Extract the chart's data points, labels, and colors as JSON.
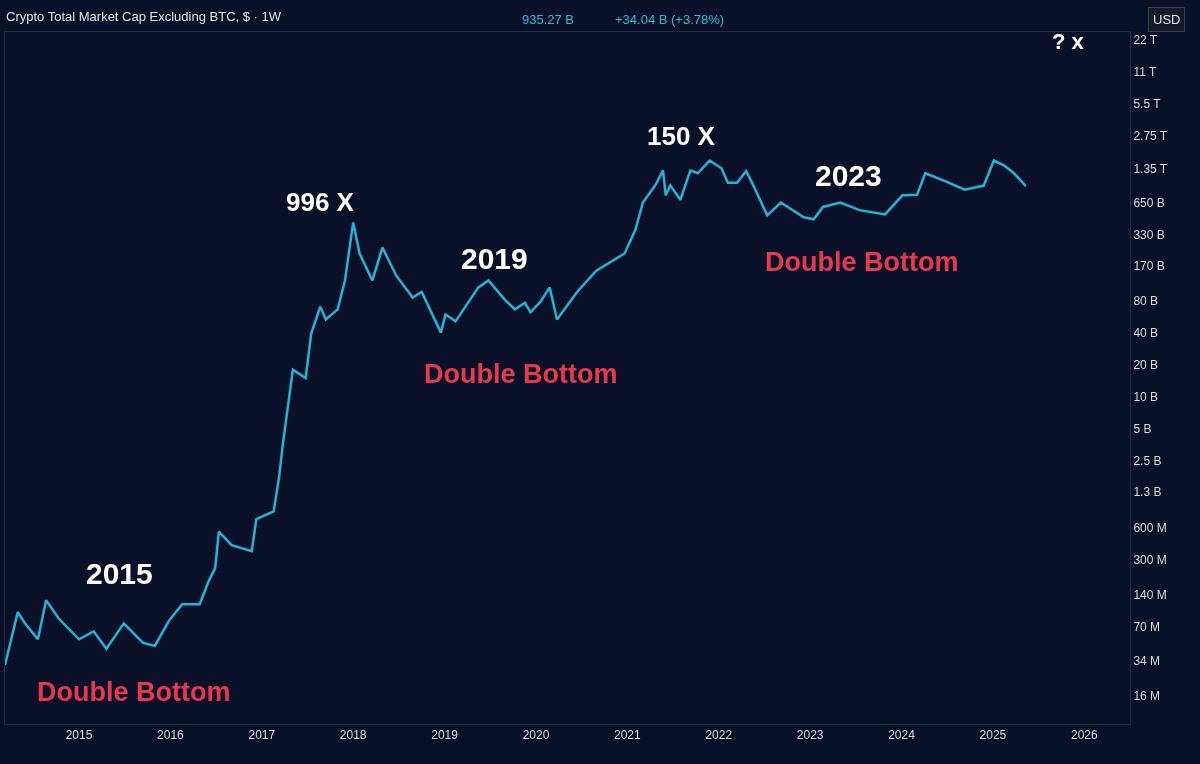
{
  "chart_data": {
    "type": "line",
    "title": "Crypto Total Market Cap Excluding BTC, $ · 1W",
    "annotations": [
      "935.27 B",
      "+34.04 B (+3.78%)",
      "USD",
      "2015",
      "Double Bottom",
      "996 X",
      "2019",
      "Double Bottom",
      "150 X",
      "2023",
      "Double Bottom",
      "? x"
    ],
    "x": [
      2014.19,
      2014.33,
      2014.41,
      2014.55,
      2014.64,
      2014.78,
      2015.0,
      2015.16,
      2015.3,
      2015.49,
      2015.7,
      2015.83,
      2015.99,
      2016.13,
      2016.32,
      2016.42,
      2016.49,
      2016.53,
      2016.67,
      2016.89,
      2016.94,
      2017.13,
      2017.19,
      2017.23,
      2017.34,
      2017.48,
      2017.54,
      2017.64,
      2017.7,
      2017.83,
      2017.91,
      2018.0,
      2018.07,
      2018.21,
      2018.32,
      2018.47,
      2018.65,
      2018.75,
      2018.96,
      2019.01,
      2019.12,
      2019.37,
      2019.48,
      2019.66,
      2019.77,
      2019.88,
      2019.94,
      2020.05,
      2020.15,
      2020.23,
      2020.45,
      2020.66,
      2020.97,
      2021.09,
      2021.17,
      2021.31,
      2021.39,
      2021.42,
      2021.47,
      2021.58,
      2021.69,
      2021.77,
      2021.9,
      2022.03,
      2022.1,
      2022.2,
      2022.3,
      2022.39,
      2022.53,
      2022.68,
      2022.93,
      2023.04,
      2023.14,
      2023.33,
      2023.54,
      2023.82,
      2024.01,
      2024.17,
      2024.26,
      2024.47,
      2024.69,
      2024.9,
      2025.01,
      2025.12,
      2025.23,
      2025.36
    ],
    "series": [
      {
        "color": "#22b5d6",
        "values": [
          31000000.0,
          97000000.0,
          76000000.0,
          54000000.0,
          125000000.0,
          84000000.0,
          54000000.0,
          64000000.0,
          44000000.0,
          76000000.0,
          50000000.0,
          47000000.0,
          82000000.0,
          115000000.0,
          115000000.0,
          190000000.0,
          250000000.0,
          550000000.0,
          410000000.0,
          360000000.0,
          720000000.0,
          850000000.0,
          1800000000.0,
          3600000000.0,
          18000000000.0,
          15000000000.0,
          39000000000.0,
          70000000000.0,
          53000000000.0,
          66000000000.0,
          123000000000.0,
          430000000000.0,
          220000000000.0,
          123000000000.0,
          250000000000.0,
          137000000000.0,
          85000000000.0,
          96000000000.0,
          40000000000.0,
          59000000000.0,
          51000000000.0,
          106000000000.0,
          123000000000.0,
          81000000000.0,
          66000000000.0,
          76000000000.0,
          62000000000.0,
          78000000000.0,
          106000000000.0,
          53000000000.0,
          96000000000.0,
          152000000000.0,
          220000000000.0,
          370000000000.0,
          660000000000.0,
          970000000000.0,
          1320000000000.0,
          770000000000.0,
          950000000000.0,
          700000000000.0,
          1320000000000.0,
          1240000000000.0,
          1630000000000.0,
          1380000000000.0,
          1010000000000.0,
          1010000000000.0,
          1300000000000.0,
          910000000000.0,
          500000000000.0,
          660000000000.0,
          480000000000.0,
          460000000000.0,
          600000000000.0,
          660000000000.0,
          560000000000.0,
          510000000000.0,
          770000000000.0,
          780000000000.0,
          1240000000000.0,
          1050000000000.0,
          870000000000.0,
          950000000000.0,
          1630000000000.0,
          1470000000000.0,
          1240000000000.0,
          940000000000.0
        ]
      }
    ],
    "xlim": [
      2014.19,
      2026.5
    ],
    "xticks": [
      2015,
      2016,
      2017,
      2018,
      2019,
      2020,
      2021,
      2022,
      2023,
      2024,
      2025,
      2026
    ],
    "log": "y",
    "ylim": [
      8700000.0,
      26000000000000.0
    ],
    "yticks": [
      {
        "value": 16000000.0,
        "label": "16 M"
      },
      {
        "value": 34000000.0,
        "label": "34 M"
      },
      {
        "value": 70000000.0,
        "label": "70 M"
      },
      {
        "value": 140000000.0,
        "label": "140 M"
      },
      {
        "value": 300000000.0,
        "label": "300 M"
      },
      {
        "value": 600000000.0,
        "label": "600 M"
      },
      {
        "value": 1300000000.0,
        "label": "1.3 B"
      },
      {
        "value": 2500000000.0,
        "label": "2.5 B"
      },
      {
        "value": 5000000000.0,
        "label": "5 B"
      },
      {
        "value": 10000000000.0,
        "label": "10 B"
      },
      {
        "value": 20000000000.0,
        "label": "20 B"
      },
      {
        "value": 40000000000.0,
        "label": "40 B"
      },
      {
        "value": 80000000000.0,
        "label": "80 B"
      },
      {
        "value": 170000000000.0,
        "label": "170 B"
      },
      {
        "value": 330000000000.0,
        "label": "330 B"
      },
      {
        "value": 650000000000.0,
        "label": "650 B"
      },
      {
        "value": 1350000000000.0,
        "label": "1.35 T"
      },
      {
        "value": 2750000000000.0,
        "label": "2.75 T"
      },
      {
        "value": 5500000000000.0,
        "label": "5.5 T"
      },
      {
        "value": 11000000000000.0,
        "label": "11 T"
      },
      {
        "value": 22000000000000.0,
        "label": "22 T"
      }
    ],
    "grid": false,
    "marker": "none",
    "line_style": "solid"
  }
}
